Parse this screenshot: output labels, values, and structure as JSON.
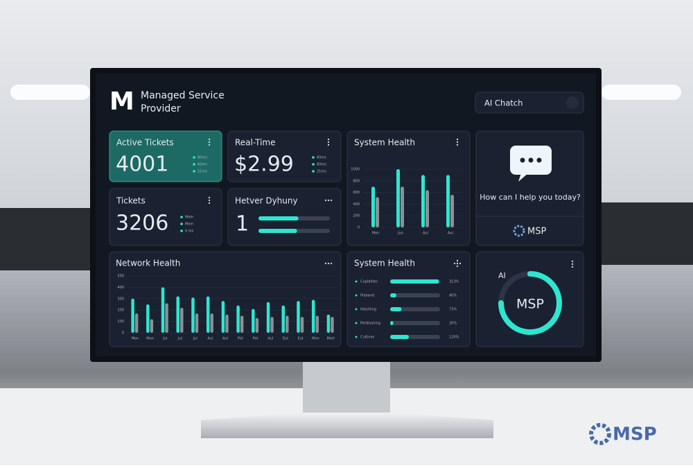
{
  "header": {
    "logo": "M",
    "title": [
      "Managed Service",
      "Provider"
    ],
    "search": "AI Chatch"
  },
  "cards": [
    {
      "title": "Active Tickets",
      "value": "4001",
      "legend": [
        "80ms",
        "60ms",
        "51ms"
      ]
    },
    {
      "title": "Real-Time",
      "value": "$2.99",
      "legend": [
        "60ms",
        "60ms",
        "21ms"
      ]
    },
    {
      "title": "Tickets",
      "value": "3206",
      "legend": [
        "Mem",
        "Mem",
        "0 ms"
      ]
    },
    {
      "title": "Hetver Dyhuny",
      "value": "1",
      "progress": [
        56,
        54
      ],
      "xlim": [
        0,
        100
      ]
    }
  ],
  "system_health": {
    "title": "System Health",
    "categories": [
      "Mon",
      "Jun",
      "Aul",
      "Aul"
    ],
    "ylim": [
      0,
      1000
    ],
    "yticks": [
      0,
      200,
      400,
      600,
      800,
      1000
    ],
    "series": [
      {
        "color": "#2ee6d0",
        "values": [
          700,
          1000,
          900,
          900
        ]
      },
      {
        "color": "#8c9096",
        "values": [
          520,
          700,
          640,
          560
        ]
      }
    ]
  },
  "chat": {
    "prompt": "How can I help you today?",
    "brand": "MSP"
  },
  "network_health": {
    "title": "Network Health",
    "categories": [
      "Mon",
      "Mon",
      "Jul",
      "Jul",
      "Jul",
      "Aul",
      "Aul",
      "Pot",
      "Pot",
      "Aul",
      "Eut",
      "Eut",
      "Mon",
      "Mort"
    ],
    "ylim": [
      0,
      500
    ],
    "yticks": [
      0,
      100,
      200,
      300,
      400,
      500
    ],
    "series": [
      {
        "color": "#2ee6d0",
        "values": [
          300,
          250,
          400,
          320,
          310,
          320,
          280,
          240,
          210,
          270,
          240,
          280,
          290,
          160
        ]
      },
      {
        "color": "#8c9096",
        "values": [
          170,
          120,
          260,
          220,
          170,
          170,
          160,
          150,
          130,
          140,
          150,
          140,
          150,
          140
        ]
      }
    ]
  },
  "system_health_2": {
    "title": "System Health",
    "categories": [
      "Cupidities",
      "Plaband",
      "Hlashling",
      "Perdlashing",
      "Cultines"
    ],
    "values": [
      313,
      40,
      73,
      20,
      120
    ],
    "value_labels": [
      "313%",
      "40%",
      "73%",
      "20%",
      "120%"
    ],
    "xlim": [
      0,
      320
    ],
    "color": "#2ee6d0"
  },
  "gauge": {
    "label": "AI",
    "center": "MSP",
    "value": 75,
    "ylim": [
      0,
      100
    ]
  },
  "watermark": "MSP"
}
